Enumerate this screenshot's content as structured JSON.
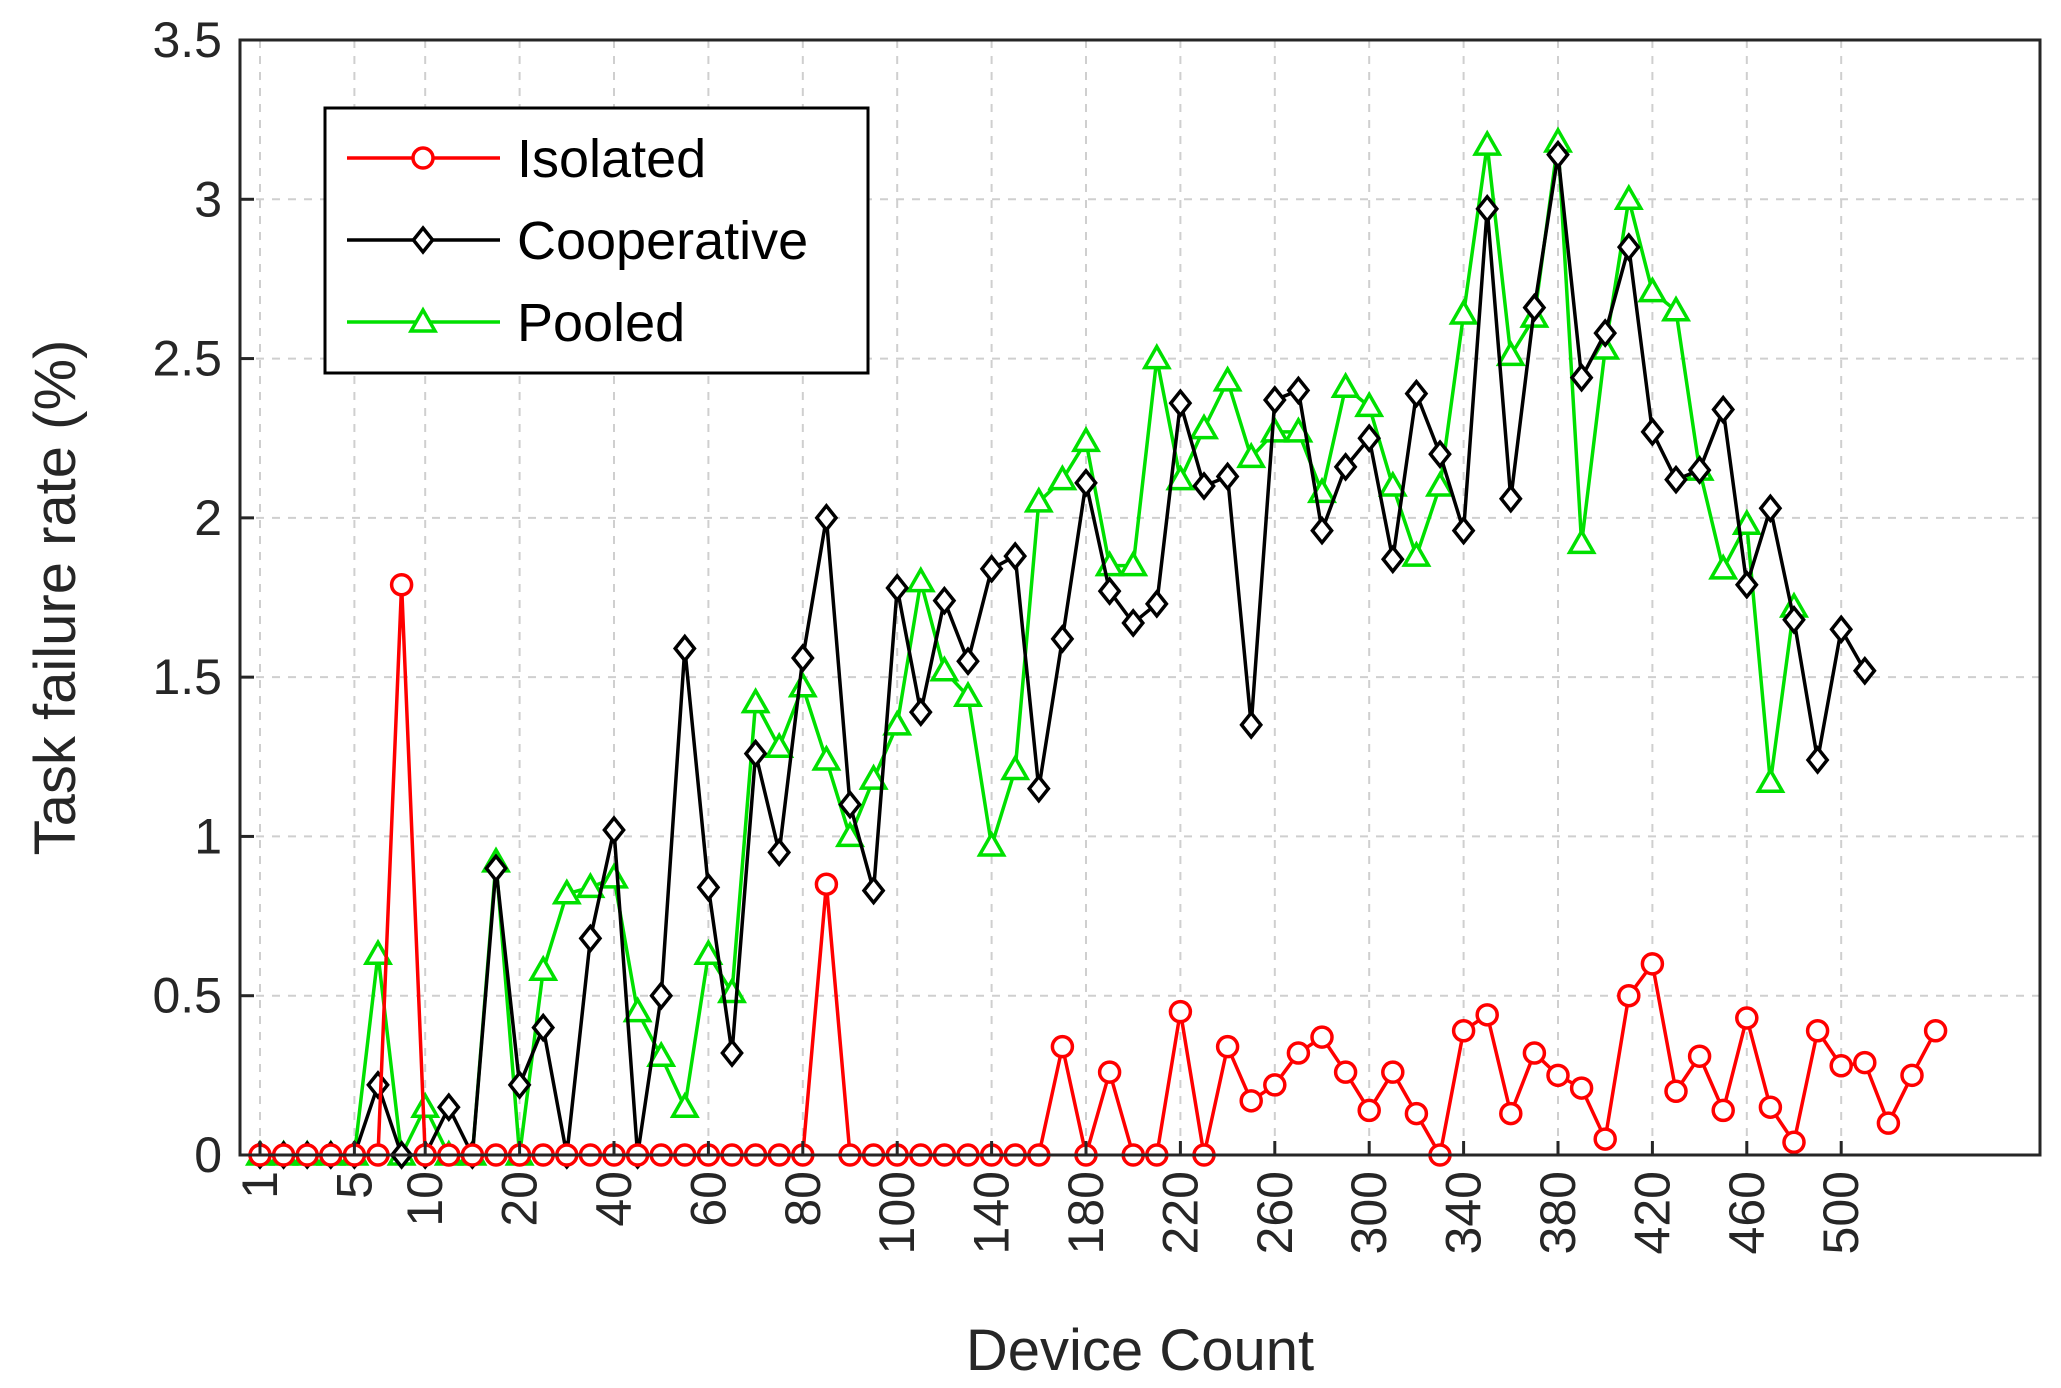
{
  "chart_data": {
    "type": "line",
    "xlabel": "Device Count",
    "ylabel": "Task failure rate (%)",
    "ylim": [
      0,
      3.5
    ],
    "yticks": [
      "0",
      "0.5",
      "1",
      "1.5",
      "2",
      "2.5",
      "3",
      "3.5"
    ],
    "xticks": [
      "1",
      "5",
      "10",
      "20",
      "40",
      "60",
      "80",
      "100",
      "140",
      "180",
      "220",
      "260",
      "300",
      "340",
      "380",
      "420",
      "460",
      "500"
    ],
    "x_scale": "categorical (unevenly spaced device counts)",
    "grid": true,
    "legend_position": "top-left",
    "series": [
      {
        "name": "Isolated",
        "color": "#ff0000",
        "marker": "circle",
        "values": [
          0,
          0,
          0,
          0,
          0,
          0,
          1.79,
          0,
          0,
          0,
          0,
          0,
          0,
          0,
          0,
          0,
          0,
          0,
          0,
          0,
          0,
          0,
          0,
          0,
          0.85,
          0,
          0,
          0,
          0,
          0,
          0,
          0,
          0,
          0,
          0.34,
          0,
          0.26,
          0,
          0,
          0.45,
          0,
          0.34,
          0.17,
          0.22,
          0.32,
          0.37,
          0.26,
          0.14,
          0.26,
          0.13,
          0,
          0.39,
          0.44,
          0.13,
          0.32,
          0.25,
          0.21,
          0.05,
          0.5,
          0.6,
          0.2,
          0.31,
          0.14,
          0.43,
          0.15,
          0.04,
          0.39,
          0.28,
          0.29,
          0.1,
          0.25,
          0.39
        ]
      },
      {
        "name": "Cooperative",
        "color": "#000000",
        "marker": "diamond",
        "values": [
          0,
          0,
          0,
          0,
          0,
          0.22,
          0,
          0,
          0.15,
          0,
          0.9,
          0.22,
          0.4,
          0,
          0.68,
          1.02,
          0,
          0.5,
          1.59,
          0.84,
          0.32,
          1.26,
          0.95,
          1.56,
          2.0,
          1.1,
          0.83,
          1.78,
          1.39,
          1.74,
          1.55,
          1.84,
          1.88,
          1.15,
          1.62,
          2.11,
          1.77,
          1.67,
          1.73,
          2.36,
          2.1,
          2.13,
          1.35,
          2.37,
          2.4,
          1.96,
          2.16,
          2.25,
          1.87,
          2.39,
          2.2,
          1.96,
          2.97,
          2.06,
          2.66,
          3.14,
          2.44,
          2.58,
          2.85,
          2.27,
          2.12,
          2.15,
          2.34,
          1.79,
          2.03,
          1.68,
          1.24,
          1.65,
          1.52
        ]
      },
      {
        "name": "Pooled",
        "color": "#00e000",
        "marker": "triangle",
        "values": [
          0,
          0,
          0,
          0,
          0,
          0.63,
          0,
          0.15,
          0,
          0,
          0.92,
          0,
          0.58,
          0.82,
          0.84,
          0.87,
          0.45,
          0.31,
          0.15,
          0.63,
          0.51,
          1.42,
          1.28,
          1.47,
          1.24,
          1.0,
          1.18,
          1.35,
          1.8,
          1.52,
          1.44,
          0.97,
          1.21,
          2.05,
          2.12,
          2.24,
          1.85,
          1.85,
          2.5,
          2.12,
          2.28,
          2.43,
          2.19,
          2.27,
          2.27,
          2.08,
          2.41,
          2.35,
          2.1,
          1.88,
          2.1,
          2.64,
          3.17,
          2.51,
          2.63,
          3.18,
          1.92,
          2.53,
          3.0,
          2.71,
          2.65,
          2.15,
          1.84,
          1.98,
          1.17,
          1.72
        ]
      }
    ]
  }
}
